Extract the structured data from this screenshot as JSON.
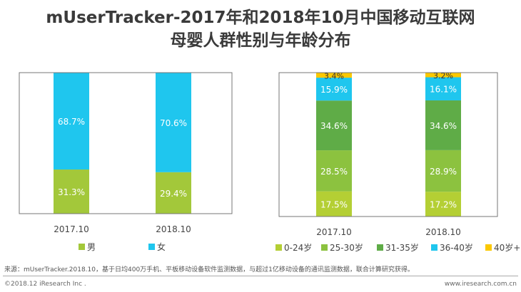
{
  "title": {
    "line1": "mUserTracker-2017年和2018年10月中国移动互联网",
    "line2": "母婴人群性别与年龄分布"
  },
  "chart_data": [
    {
      "type": "bar",
      "stacked": true,
      "categories": [
        "2017.10",
        "2018.10"
      ],
      "series": [
        {
          "name": "男",
          "values": [
            31.3,
            29.4
          ],
          "labels": [
            "31.3%",
            "29.4%"
          ],
          "color": "#a3c83a"
        },
        {
          "name": "女",
          "values": [
            68.7,
            70.6
          ],
          "labels": [
            "68.7%",
            "70.6%"
          ],
          "color": "#1fc6ee"
        }
      ],
      "ylim": [
        0,
        100
      ],
      "legend": "bottom"
    },
    {
      "type": "bar",
      "stacked": true,
      "categories": [
        "2017.10",
        "2018.10"
      ],
      "series": [
        {
          "name": "0-24岁",
          "values": [
            17.5,
            17.2
          ],
          "labels": [
            "17.5%",
            "17.2%"
          ],
          "color": "#b4cf34"
        },
        {
          "name": "25-30岁",
          "values": [
            28.5,
            28.9
          ],
          "labels": [
            "28.5%",
            "28.9%"
          ],
          "color": "#8cc23f"
        },
        {
          "name": "31-35岁",
          "values": [
            34.6,
            34.6
          ],
          "labels": [
            "34.6%",
            "34.6%"
          ],
          "color": "#5fac47"
        },
        {
          "name": "36-40岁",
          "values": [
            15.9,
            16.1
          ],
          "labels": [
            "15.9%",
            "16.1%"
          ],
          "color": "#1fc6ee"
        },
        {
          "name": "40岁+",
          "values": [
            3.4,
            3.2
          ],
          "labels": [
            "3.4%",
            "3.2%"
          ],
          "color": "#fbc800"
        }
      ],
      "ylim": [
        0,
        100
      ],
      "legend": "bottom"
    }
  ],
  "source": "来源：mUserTracker.2018.10，基于日均400万手机、平板移动设备软件监测数据，与超过1亿移动设备的通讯监测数据，联合计算研究获得。",
  "footer": {
    "left": "©2018.12 iResearch Inc .",
    "right": "www.iresearch.com.cn"
  }
}
